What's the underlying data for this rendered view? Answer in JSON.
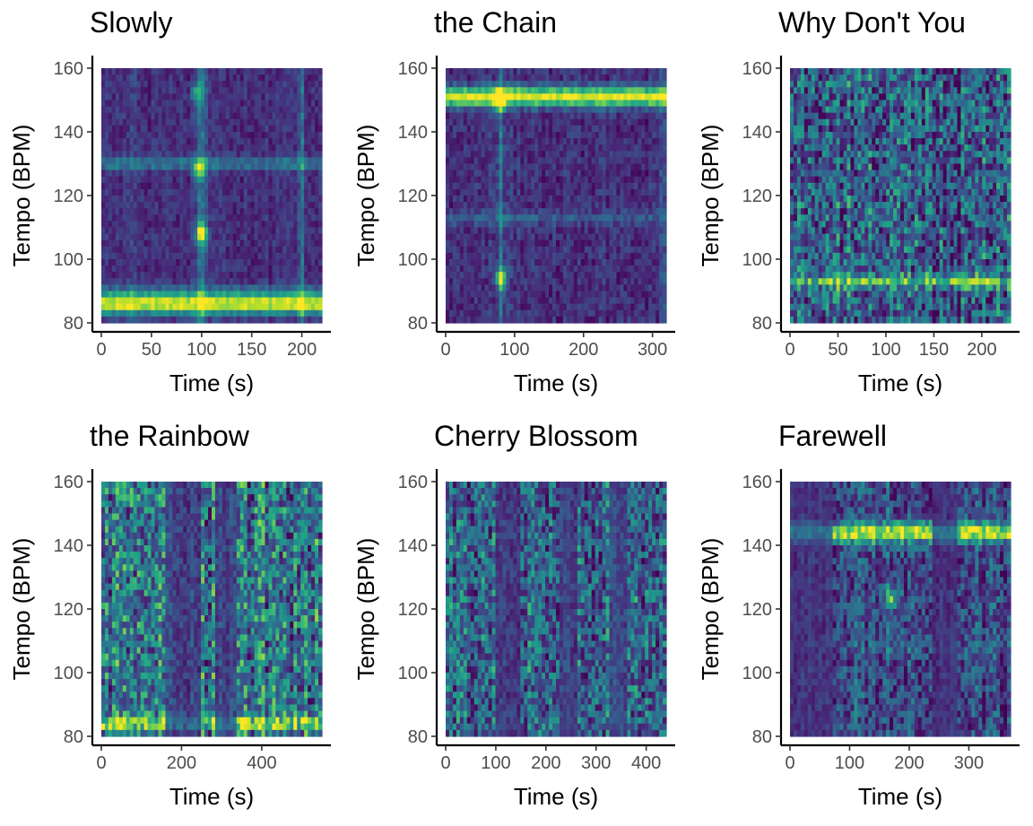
{
  "chart_data": [
    {
      "type": "heatmap",
      "title": "Slowly",
      "xlabel": "Time (s)",
      "ylabel": "Tempo (BPM)",
      "xlim": [
        0,
        220
      ],
      "ylim": [
        80,
        160
      ],
      "xticks": [
        0,
        50,
        100,
        150,
        200
      ],
      "yticks": [
        80,
        100,
        120,
        140,
        160
      ],
      "colorscale": "viridis",
      "background": 0.14,
      "horizontal_bands": [
        {
          "tempo": 86,
          "intensity": 0.98,
          "width": 3
        },
        {
          "tempo": 130,
          "intensity": 0.42,
          "width": 2
        },
        {
          "tempo": 90,
          "intensity": 0.3,
          "width": 2
        }
      ],
      "vertical_bands": [
        {
          "time": 100,
          "intensity": 0.45,
          "width": 5
        },
        {
          "time": 200,
          "intensity": 0.4,
          "width": 3
        },
        {
          "time": 30,
          "intensity": 0.25,
          "width": 4
        }
      ],
      "hotspots": [
        {
          "time": 100,
          "tempo": 108,
          "intensity": 0.95
        },
        {
          "time": 97,
          "tempo": 128,
          "intensity": 0.7
        },
        {
          "time": 95,
          "tempo": 152,
          "intensity": 0.55
        }
      ],
      "texture": 0.12
    },
    {
      "type": "heatmap",
      "title": "the Chain",
      "xlabel": "Time (s)",
      "ylabel": "Tempo (BPM)",
      "xlim": [
        0,
        320
      ],
      "ylim": [
        80,
        160
      ],
      "xticks": [
        0,
        100,
        200,
        300
      ],
      "yticks": [
        80,
        100,
        120,
        140,
        160
      ],
      "colorscale": "viridis",
      "background": 0.14,
      "horizontal_bands": [
        {
          "tempo": 151,
          "intensity": 0.98,
          "width": 3
        },
        {
          "tempo": 113,
          "intensity": 0.3,
          "width": 2
        }
      ],
      "vertical_bands": [
        {
          "time": 80,
          "intensity": 0.45,
          "width": 5
        },
        {
          "time": 315,
          "intensity": 0.35,
          "width": 3
        }
      ],
      "hotspots": [
        {
          "time": 80,
          "tempo": 94,
          "intensity": 0.85
        },
        {
          "time": 78,
          "tempo": 150,
          "intensity": 0.9
        }
      ],
      "texture": 0.14
    },
    {
      "type": "heatmap",
      "title": "Why Don't You",
      "xlabel": "Time (s)",
      "ylabel": "Tempo (BPM)",
      "xlim": [
        0,
        230
      ],
      "ylim": [
        80,
        160
      ],
      "xticks": [
        0,
        50,
        100,
        150,
        200
      ],
      "yticks": [
        80,
        100,
        120,
        140,
        160
      ],
      "colorscale": "viridis",
      "background": 0.3,
      "horizontal_bands": [
        {
          "tempo": 93,
          "intensity": 0.75,
          "width": 2
        }
      ],
      "vertical_bands": [],
      "hotspots": [],
      "texture": 0.42
    },
    {
      "type": "heatmap",
      "title": "the Rainbow",
      "xlabel": "Time (s)",
      "ylabel": "Tempo (BPM)",
      "xlim": [
        0,
        550
      ],
      "ylim": [
        80,
        160
      ],
      "xticks": [
        0,
        200,
        400
      ],
      "yticks": [
        80,
        100,
        120,
        140,
        160
      ],
      "colorscale": "viridis",
      "background": 0.4,
      "horizontal_bands": [
        {
          "tempo": 84,
          "intensity": 0.9,
          "width": 2
        }
      ],
      "vertical_bands": [],
      "dark_regions": [
        {
          "from": 160,
          "to": 250,
          "intensity": 0.1
        },
        {
          "from": 280,
          "to": 340,
          "intensity": 0.12
        }
      ],
      "hotspots": [],
      "texture": 0.45
    },
    {
      "type": "heatmap",
      "title": "Cherry Blossom",
      "xlabel": "Time (s)",
      "ylabel": "Tempo (BPM)",
      "xlim": [
        0,
        440
      ],
      "ylim": [
        80,
        160
      ],
      "xticks": [
        0,
        100,
        200,
        300,
        400
      ],
      "yticks": [
        80,
        100,
        120,
        140,
        160
      ],
      "colorscale": "viridis",
      "background": 0.32,
      "horizontal_bands": [],
      "vertical_bands": [],
      "dark_regions": [
        {
          "from": 100,
          "to": 150,
          "intensity": 0.1
        },
        {
          "from": 225,
          "to": 265,
          "intensity": 0.12
        },
        {
          "from": 330,
          "to": 360,
          "intensity": 0.14
        }
      ],
      "hotspots": [],
      "texture": 0.4
    },
    {
      "type": "heatmap",
      "title": "Farewell",
      "xlabel": "Time (s)",
      "ylabel": "Tempo (BPM)",
      "xlim": [
        0,
        370
      ],
      "ylim": [
        80,
        160
      ],
      "xticks": [
        0,
        100,
        200,
        300
      ],
      "yticks": [
        80,
        100,
        120,
        140,
        160
      ],
      "colorscale": "viridis",
      "background": 0.22,
      "horizontal_bands": [
        {
          "tempo": 144,
          "intensity": 0.92,
          "width": 3
        },
        {
          "tempo": 108,
          "intensity": 0.3,
          "width": 2
        }
      ],
      "vertical_bands": [],
      "dark_regions": [
        {
          "from": 0,
          "to": 70,
          "intensity": 0.1
        },
        {
          "from": 240,
          "to": 280,
          "intensity": 0.1
        }
      ],
      "hotspots": [
        {
          "time": 170,
          "tempo": 123,
          "intensity": 0.8
        }
      ],
      "texture": 0.3
    }
  ]
}
